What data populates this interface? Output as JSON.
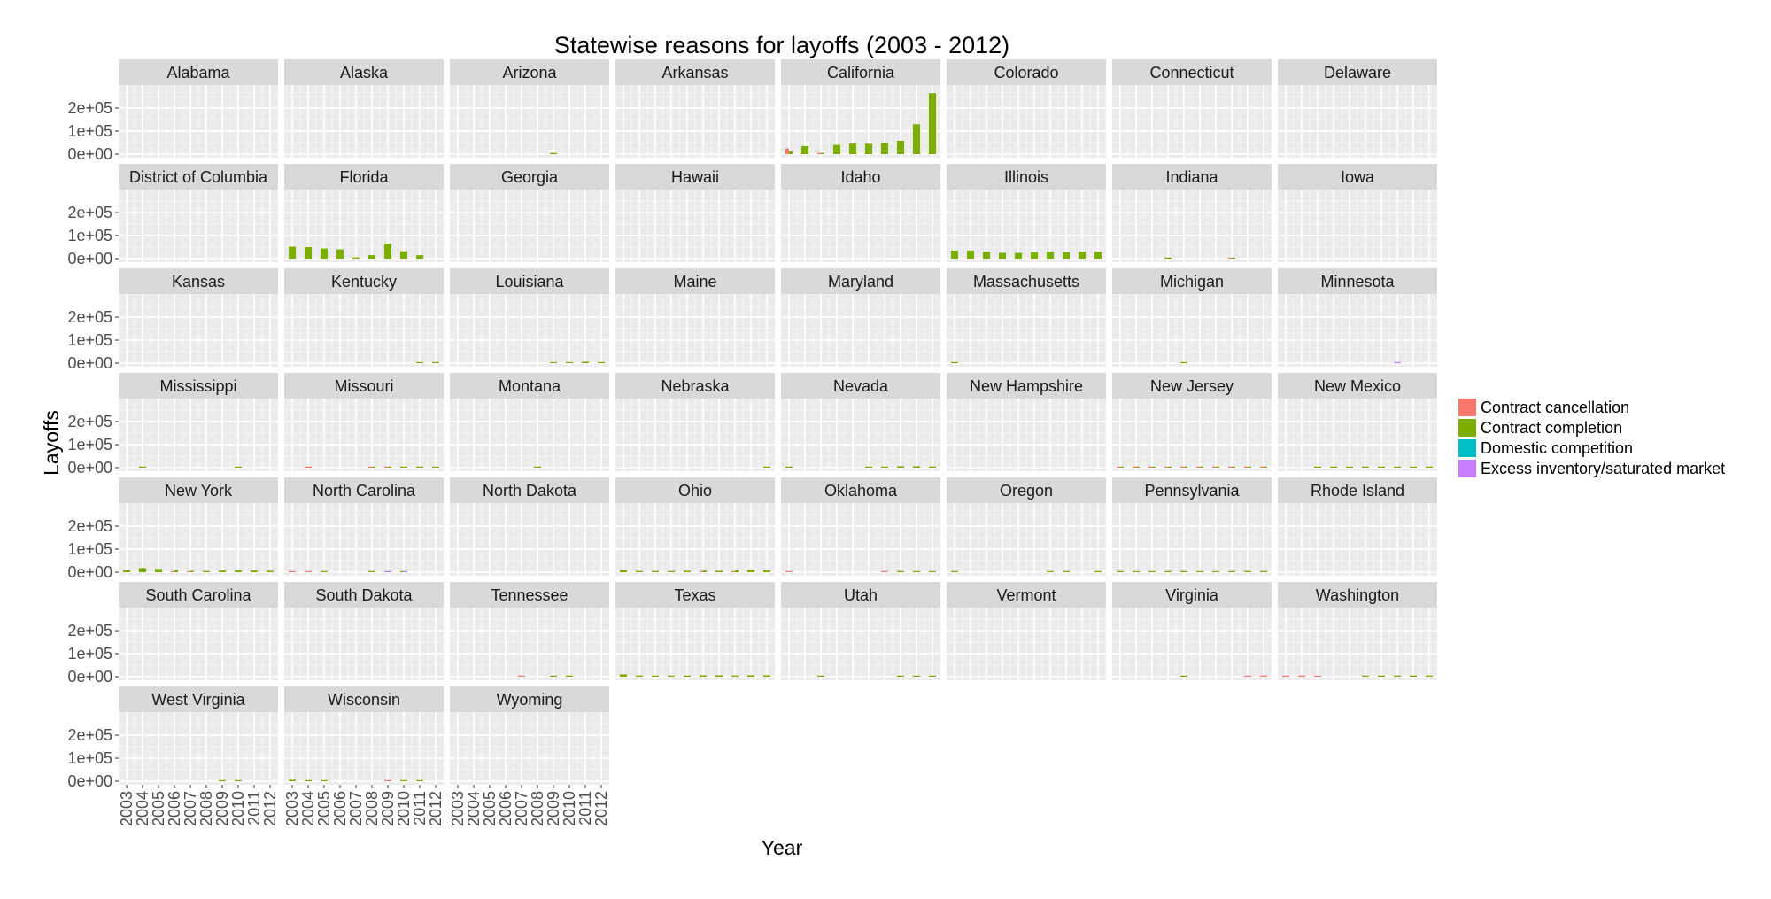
{
  "chart_data": {
    "type": "bar",
    "title": "Statewise reasons for layoffs (2003 - 2012)",
    "xlabel": "Year",
    "ylabel": "Layoffs",
    "x": [
      "2003",
      "2004",
      "2005",
      "2006",
      "2007",
      "2008",
      "2009",
      "2010",
      "2011",
      "2012"
    ],
    "ylim": [
      0,
      285000
    ],
    "y_ticks": [
      0,
      100000,
      200000
    ],
    "y_tick_labels": [
      "0e+00",
      "1e+05",
      "2e+05"
    ],
    "grid": true,
    "legend_position": "right",
    "legend": [
      {
        "name": "Contract cancellation",
        "color": "#F8766D"
      },
      {
        "name": "Contract completion",
        "color": "#7CAE00"
      },
      {
        "name": "Domestic competition",
        "color": "#00BFC4"
      },
      {
        "name": "Excess inventory/saturated market",
        "color": "#C77CFF"
      }
    ],
    "panels": [
      {
        "state": "Alabama",
        "series": {}
      },
      {
        "state": "Alaska",
        "series": {}
      },
      {
        "state": "Arizona",
        "series": {
          "Contract completion": [
            0,
            0,
            0,
            0,
            0,
            0,
            4000,
            0,
            0,
            0
          ]
        }
      },
      {
        "state": "Arkansas",
        "series": {}
      },
      {
        "state": "California",
        "series": {
          "Contract cancellation": [
            25000,
            0,
            5000,
            0,
            0,
            0,
            0,
            0,
            0,
            0
          ],
          "Contract completion": [
            12000,
            35000,
            3000,
            40000,
            46000,
            45000,
            49000,
            58000,
            130000,
            265000
          ]
        }
      },
      {
        "state": "Colorado",
        "series": {}
      },
      {
        "state": "Connecticut",
        "series": {}
      },
      {
        "state": "Delaware",
        "series": {}
      },
      {
        "state": "District of Columbia",
        "series": {}
      },
      {
        "state": "Florida",
        "series": {
          "Contract completion": [
            52000,
            50000,
            44000,
            40000,
            5000,
            15000,
            65000,
            32000,
            15000,
            0
          ]
        }
      },
      {
        "state": "Georgia",
        "series": {}
      },
      {
        "state": "Hawaii",
        "series": {}
      },
      {
        "state": "Idaho",
        "series": {}
      },
      {
        "state": "Illinois",
        "series": {
          "Contract completion": [
            35000,
            35000,
            30000,
            25000,
            25000,
            28000,
            30000,
            28000,
            30000,
            30000
          ]
        }
      },
      {
        "state": "Indiana",
        "series": {
          "Contract cancellation": [
            0,
            0,
            0,
            0,
            0,
            0,
            0,
            2500,
            0,
            0
          ],
          "Contract completion": [
            0,
            0,
            0,
            1500,
            0,
            0,
            0,
            3000,
            0,
            0
          ]
        }
      },
      {
        "state": "Iowa",
        "series": {}
      },
      {
        "state": "Kansas",
        "series": {}
      },
      {
        "state": "Kentucky",
        "series": {
          "Contract completion": [
            0,
            0,
            0,
            0,
            0,
            0,
            0,
            0,
            3000,
            4000
          ]
        }
      },
      {
        "state": "Louisiana",
        "series": {
          "Contract completion": [
            0,
            0,
            0,
            0,
            0,
            0,
            3000,
            3000,
            6000,
            3000
          ]
        }
      },
      {
        "state": "Maine",
        "series": {}
      },
      {
        "state": "Maryland",
        "series": {}
      },
      {
        "state": "Massachusetts",
        "series": {
          "Contract completion": [
            3000,
            0,
            0,
            0,
            0,
            0,
            0,
            0,
            0,
            0
          ]
        }
      },
      {
        "state": "Michigan",
        "series": {
          "Contract completion": [
            0,
            0,
            0,
            0,
            3000,
            0,
            0,
            0,
            0,
            0
          ]
        }
      },
      {
        "state": "Minnesota",
        "series": {
          "Excess inventory/saturated market": [
            0,
            0,
            0,
            0,
            0,
            0,
            0,
            2500,
            0,
            0
          ]
        }
      },
      {
        "state": "Mississippi",
        "series": {
          "Contract completion": [
            0,
            2000,
            0,
            0,
            0,
            0,
            0,
            2000,
            0,
            0
          ]
        }
      },
      {
        "state": "Missouri",
        "series": {
          "Contract cancellation": [
            0,
            2000,
            0,
            0,
            0,
            2000,
            3000,
            0,
            0,
            0
          ],
          "Contract completion": [
            0,
            0,
            0,
            0,
            0,
            2000,
            2000,
            3000,
            3000,
            3000
          ]
        }
      },
      {
        "state": "Montana",
        "series": {
          "Contract completion": [
            0,
            0,
            0,
            0,
            0,
            2500,
            0,
            0,
            0,
            0
          ]
        }
      },
      {
        "state": "Nebraska",
        "series": {
          "Contract completion": [
            0,
            0,
            0,
            0,
            0,
            0,
            0,
            0,
            0,
            2500
          ]
        }
      },
      {
        "state": "Nevada",
        "series": {
          "Contract completion": [
            2000,
            0,
            0,
            0,
            0,
            3000,
            4000,
            6000,
            6000,
            5000
          ]
        }
      },
      {
        "state": "New Hampshire",
        "series": {}
      },
      {
        "state": "New Jersey",
        "series": {
          "Contract cancellation": [
            2000,
            2000,
            2000,
            3000,
            3000,
            3000,
            2000,
            3000,
            3000,
            3000
          ],
          "Contract completion": [
            3000,
            3000,
            3000,
            3000,
            4000,
            4000,
            3000,
            3000,
            3000,
            3000
          ]
        }
      },
      {
        "state": "New Mexico",
        "series": {
          "Contract completion": [
            0,
            0,
            2500,
            3000,
            2500,
            3000,
            2500,
            3000,
            2500,
            3000
          ]
        }
      },
      {
        "state": "New York",
        "series": {
          "Contract completion": [
            8000,
            18000,
            14000,
            10000,
            6000,
            5000,
            7000,
            8000,
            7000,
            6000
          ],
          "Contract cancellation": [
            0,
            0,
            0,
            2000,
            2000,
            0,
            0,
            0,
            0,
            0
          ]
        }
      },
      {
        "state": "North Carolina",
        "series": {
          "Contract cancellation": [
            3000,
            3000,
            0,
            0,
            0,
            0,
            0,
            0,
            0,
            0
          ],
          "Contract completion": [
            0,
            0,
            2500,
            0,
            0,
            2500,
            0,
            2500,
            0,
            0
          ],
          "Excess inventory/saturated market": [
            0,
            0,
            0,
            0,
            0,
            0,
            2000,
            2000,
            0,
            0
          ]
        }
      },
      {
        "state": "North Dakota",
        "series": {}
      },
      {
        "state": "Ohio",
        "series": {
          "Contract completion": [
            8000,
            5000,
            5000,
            5000,
            6000,
            7000,
            6000,
            8000,
            9000,
            8000
          ],
          "Contract cancellation": [
            0,
            0,
            0,
            0,
            0,
            4000,
            0,
            3000,
            0,
            0
          ]
        }
      },
      {
        "state": "Oklahoma",
        "series": {
          "Contract cancellation": [
            2500,
            0,
            0,
            0,
            0,
            0,
            2000,
            0,
            0,
            0
          ],
          "Contract completion": [
            0,
            0,
            0,
            0,
            0,
            0,
            0,
            3000,
            3000,
            3000
          ]
        }
      },
      {
        "state": "Oregon",
        "series": {
          "Contract completion": [
            2500,
            0,
            0,
            0,
            0,
            0,
            2500,
            2500,
            0,
            2500
          ]
        }
      },
      {
        "state": "Pennsylvania",
        "series": {
          "Contract completion": [
            4000,
            4000,
            4000,
            3000,
            4000,
            3000,
            3000,
            4000,
            5000,
            5000
          ]
        }
      },
      {
        "state": "Rhode Island",
        "series": {}
      },
      {
        "state": "South Carolina",
        "series": {}
      },
      {
        "state": "South Dakota",
        "series": {}
      },
      {
        "state": "Tennessee",
        "series": {
          "Contract cancellation": [
            0,
            0,
            0,
            0,
            2000,
            0,
            0,
            0,
            0,
            0
          ],
          "Contract completion": [
            0,
            0,
            0,
            0,
            0,
            0,
            2000,
            2000,
            0,
            0
          ]
        }
      },
      {
        "state": "Texas",
        "series": {
          "Contract completion": [
            10000,
            5000,
            4000,
            3000,
            3000,
            6000,
            6000,
            5000,
            6000,
            6000
          ]
        }
      },
      {
        "state": "Utah",
        "series": {
          "Contract completion": [
            0,
            0,
            2500,
            0,
            0,
            0,
            0,
            2500,
            2500,
            2500
          ]
        }
      },
      {
        "state": "Vermont",
        "series": {}
      },
      {
        "state": "Virginia",
        "series": {
          "Contract completion": [
            0,
            0,
            0,
            0,
            2500,
            0,
            0,
            0,
            0,
            0
          ],
          "Contract cancellation": [
            0,
            0,
            0,
            0,
            0,
            0,
            0,
            0,
            2500,
            2500
          ]
        }
      },
      {
        "state": "Washington",
        "series": {
          "Contract cancellation": [
            3000,
            3000,
            3000,
            0,
            0,
            0,
            0,
            0,
            0,
            0
          ],
          "Contract completion": [
            0,
            0,
            0,
            0,
            0,
            3000,
            5000,
            5000,
            5000,
            5000
          ]
        }
      },
      {
        "state": "West Virginia",
        "series": {
          "Contract completion": [
            0,
            0,
            0,
            0,
            0,
            0,
            2000,
            3000,
            0,
            0
          ]
        }
      },
      {
        "state": "Wisconsin",
        "series": {
          "Contract completion": [
            6000,
            3000,
            3000,
            0,
            0,
            0,
            0,
            2500,
            2500,
            0
          ],
          "Contract cancellation": [
            0,
            0,
            0,
            0,
            0,
            0,
            2500,
            0,
            0,
            0
          ]
        }
      },
      {
        "state": "Wyoming",
        "series": {}
      }
    ]
  }
}
